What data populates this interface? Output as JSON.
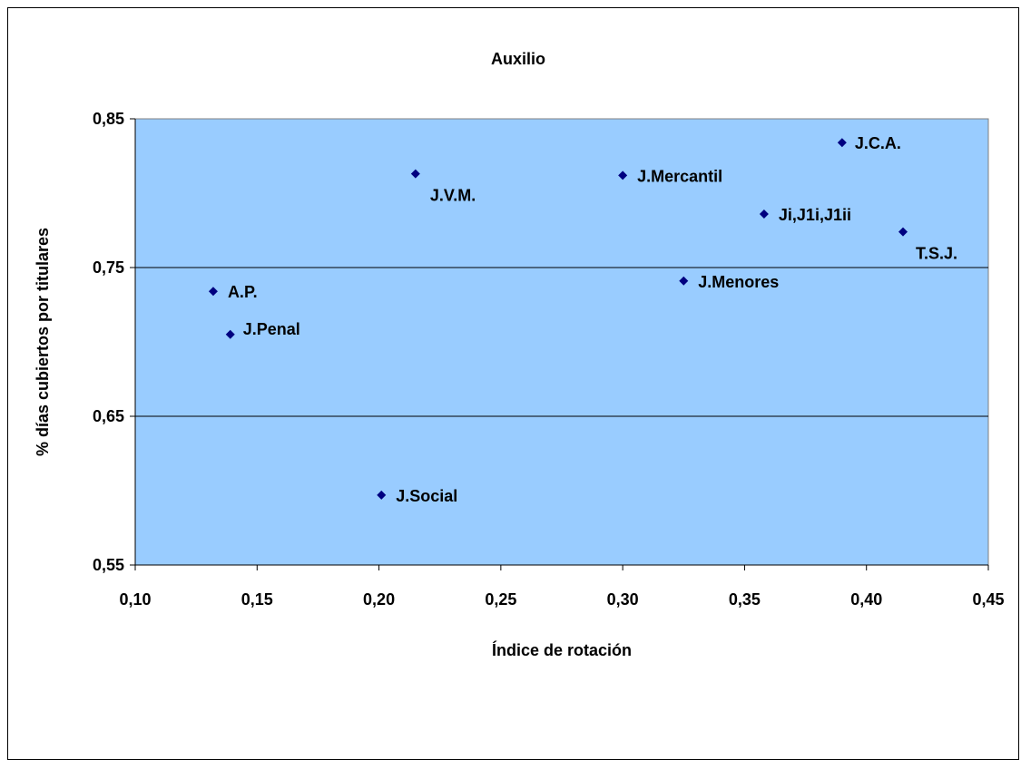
{
  "chart_data": {
    "type": "scatter",
    "title": "Auxilio",
    "xlabel": "Índice de rotación",
    "ylabel": "% días cubiertos por titulares",
    "xlim": [
      0.1,
      0.45
    ],
    "ylim": [
      0.55,
      0.85
    ],
    "x_ticks": [
      "0,10",
      "0,15",
      "0,20",
      "0,25",
      "0,30",
      "0,35",
      "0,40",
      "0,45"
    ],
    "y_ticks": [
      "0,55",
      "0,65",
      "0,75",
      "0,85"
    ],
    "grid": "horizontal major gridlines",
    "plot_background": "#99CCFF",
    "marker_color": "#000080",
    "points": [
      {
        "label": "J.C.A.",
        "x": 0.39,
        "y": 0.834
      },
      {
        "label": "J.Mercantil",
        "x": 0.3,
        "y": 0.812
      },
      {
        "label": "J.V.M.",
        "x": 0.215,
        "y": 0.813
      },
      {
        "label": "Ji,J1i,J1ii",
        "x": 0.358,
        "y": 0.786
      },
      {
        "label": "T.S.J.",
        "x": 0.415,
        "y": 0.774
      },
      {
        "label": "J.Menores",
        "x": 0.325,
        "y": 0.741
      },
      {
        "label": "A.P.",
        "x": 0.132,
        "y": 0.734
      },
      {
        "label": "J.Penal",
        "x": 0.139,
        "y": 0.705
      },
      {
        "label": "J.Social",
        "x": 0.201,
        "y": 0.597
      }
    ]
  }
}
